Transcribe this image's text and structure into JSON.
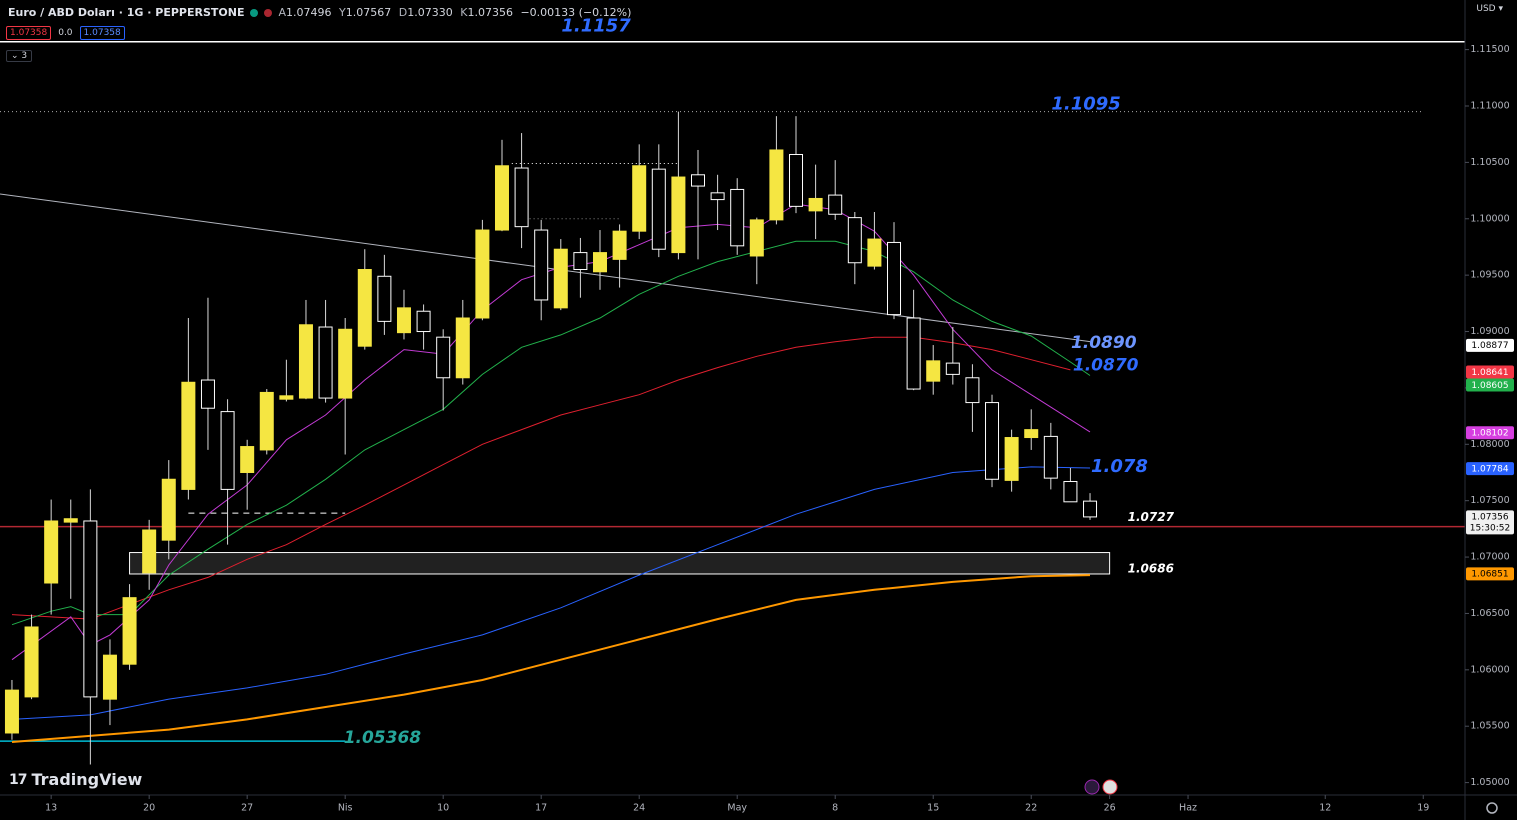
{
  "header": {
    "symbol": "Euro / ABD Doları · 1G · PEPPERSTONE",
    "ohlc": [
      {
        "key": "A",
        "value": "1.07496"
      },
      {
        "key": "Y",
        "value": "1.07567"
      },
      {
        "key": "D",
        "value": "1.07330"
      },
      {
        "key": "K",
        "value": "1.07356"
      }
    ],
    "change": "−0.00133 (−0.12%)",
    "sell": "1.07358",
    "spread": "0.0",
    "buy": "1.07358",
    "indicators": "3",
    "currency": "USD",
    "logo": "TradingView"
  },
  "chart_data": {
    "type": "candlestick",
    "xlim": [
      -0.61,
      74.13
    ],
    "ylim": [
      1.0489,
      1.1194
    ],
    "xticks": [
      {
        "value": 2,
        "label": "13"
      },
      {
        "value": 7,
        "label": "20"
      },
      {
        "value": 12,
        "label": "27"
      },
      {
        "value": 17,
        "label": "Nis"
      },
      {
        "value": 22,
        "label": "10"
      },
      {
        "value": 27,
        "label": "17"
      },
      {
        "value": 32,
        "label": "24"
      },
      {
        "value": 37,
        "label": "May"
      },
      {
        "value": 42,
        "label": "8"
      },
      {
        "value": 47,
        "label": "15"
      },
      {
        "value": 52,
        "label": "22"
      },
      {
        "value": 56,
        "label": "26"
      },
      {
        "value": 60,
        "label": "Haz"
      },
      {
        "value": 67,
        "label": "12"
      },
      {
        "value": 72,
        "label": "19"
      }
    ],
    "yticks": [
      {
        "value": 1.05,
        "label": "1.05000"
      },
      {
        "value": 1.055,
        "label": "1.05500"
      },
      {
        "value": 1.06,
        "label": "1.06000"
      },
      {
        "value": 1.065,
        "label": "1.06500"
      },
      {
        "value": 1.07,
        "label": "1.07000"
      },
      {
        "value": 1.075,
        "label": "1.07500"
      },
      {
        "value": 1.08,
        "label": "1.08000"
      },
      {
        "value": 1.085,
        "label": "1.08500"
      },
      {
        "value": 1.09,
        "label": "1.09000"
      },
      {
        "value": 1.095,
        "label": "1.09500"
      },
      {
        "value": 1.1,
        "label": "1.10000"
      },
      {
        "value": 1.105,
        "label": "1.10500"
      },
      {
        "value": 1.11,
        "label": "1.11000"
      },
      {
        "value": 1.115,
        "label": "1.11500"
      }
    ],
    "grid": false,
    "up_color": "#f5e642",
    "down_color": "#000000",
    "down_border": "#ffffff",
    "wick_color": "#d9d9d9",
    "open": [
      1.0544,
      1.0576,
      1.0677,
      1.0731,
      1.0732,
      1.0574,
      1.0605,
      1.0686,
      1.0715,
      1.076,
      1.0857,
      1.0829,
      1.0775,
      1.0795,
      1.084,
      1.0841,
      1.0904,
      1.0841,
      1.0887,
      1.0949,
      1.0899,
      1.0918,
      1.0895,
      1.0859,
      1.0912,
      1.099,
      1.1045,
      1.099,
      1.0921,
      1.097,
      1.0953,
      1.0964,
      1.0989,
      1.1044,
      1.097,
      1.1039,
      1.1023,
      1.1026,
      1.0967,
      1.0999,
      1.1057,
      1.1007,
      1.1021,
      1.1001,
      1.0958,
      1.0979,
      1.0912,
      1.0856,
      1.0872,
      1.0859,
      1.0837,
      1.0768,
      1.0806,
      1.0807,
      1.0767,
      1.07496
    ],
    "high": [
      1.0591,
      1.0649,
      1.0751,
      1.0751,
      1.076,
      1.0627,
      1.0676,
      1.0733,
      1.0786,
      1.0912,
      1.093,
      1.084,
      1.0804,
      1.0849,
      1.0875,
      1.0928,
      1.0928,
      1.0912,
      1.0973,
      1.0968,
      1.0937,
      1.0924,
      1.0902,
      1.0928,
      1.0999,
      1.107,
      1.1076,
      1.0999,
      1.0982,
      1.0983,
      1.099,
      1.0995,
      1.1066,
      1.1066,
      1.1095,
      1.1061,
      1.1039,
      1.1036,
      1.1001,
      1.1091,
      1.1091,
      1.1048,
      1.1052,
      1.1006,
      1.1006,
      1.0997,
      1.0937,
      1.0888,
      1.0904,
      1.0871,
      1.0844,
      1.0813,
      1.0831,
      1.0819,
      1.0779,
      1.07567
    ],
    "low": [
      1.0538,
      1.0574,
      1.0649,
      1.0663,
      1.0516,
      1.0551,
      1.06,
      1.0671,
      1.0698,
      1.0751,
      1.0795,
      1.0711,
      1.0742,
      1.0791,
      1.0838,
      1.084,
      1.0837,
      1.0791,
      1.0884,
      1.0897,
      1.0893,
      1.0884,
      1.083,
      1.0853,
      1.091,
      1.0989,
      1.0974,
      1.091,
      1.0919,
      1.093,
      1.0937,
      1.0939,
      1.0982,
      1.0966,
      1.0964,
      1.0964,
      1.099,
      1.0968,
      1.0942,
      1.0995,
      1.1005,
      1.0982,
      1.0999,
      1.0942,
      1.0955,
      1.0911,
      1.0848,
      1.0844,
      1.0853,
      1.0811,
      1.0762,
      1.0758,
      1.0795,
      1.076,
      1.0749,
      1.0733
    ],
    "close": [
      1.0582,
      1.0638,
      1.0732,
      1.0734,
      1.0576,
      1.0613,
      1.0664,
      1.0724,
      1.0769,
      1.0855,
      1.0832,
      1.076,
      1.0798,
      1.0846,
      1.0843,
      1.0906,
      1.0841,
      1.0902,
      1.0955,
      1.0909,
      1.0921,
      1.09,
      1.0859,
      1.0912,
      1.099,
      1.1047,
      1.0993,
      1.0928,
      1.0973,
      1.0955,
      1.097,
      1.0989,
      1.1047,
      1.0973,
      1.1037,
      1.1029,
      1.1017,
      1.0976,
      1.0999,
      1.1061,
      1.1011,
      1.1018,
      1.1004,
      1.0961,
      1.0982,
      1.0915,
      1.0849,
      1.0874,
      1.0862,
      1.0837,
      1.0769,
      1.0806,
      1.0813,
      1.077,
      1.0749,
      1.07356
    ],
    "lines": [
      {
        "color": "#ff9800",
        "width": 2,
        "x": [
          0,
          8,
          12,
          16,
          20,
          24,
          28,
          32,
          36,
          40,
          44,
          48,
          52,
          55
        ],
        "values": [
          1.0536,
          1.0547,
          1.0556,
          1.0567,
          1.0578,
          1.0591,
          1.0609,
          1.0627,
          1.0645,
          1.0662,
          1.0671,
          1.0678,
          1.0683,
          1.0684
        ]
      },
      {
        "color": "#2962ff",
        "width": 1,
        "x": [
          0,
          4,
          8,
          12,
          16,
          20,
          24,
          28,
          32,
          36,
          40,
          44,
          48,
          52,
          55
        ],
        "values": [
          1.0556,
          1.056,
          1.0574,
          1.0584,
          1.0596,
          1.0614,
          1.0631,
          1.0655,
          1.0684,
          1.0711,
          1.0738,
          1.076,
          1.0775,
          1.078,
          1.0779
        ]
      },
      {
        "color": "#e0202f",
        "width": 1,
        "x": [
          0,
          4,
          6,
          8,
          10,
          12,
          14,
          16,
          18,
          20,
          22,
          24,
          26,
          28,
          30,
          32,
          34,
          36,
          38,
          40,
          42,
          44,
          46,
          48,
          50,
          52,
          54
        ],
        "values": [
          1.0649,
          1.0645,
          1.0658,
          1.0671,
          1.0682,
          1.0698,
          1.0711,
          1.0729,
          1.0746,
          1.0764,
          1.0782,
          1.08,
          1.0813,
          1.0826,
          1.0835,
          1.0844,
          1.0857,
          1.0868,
          1.0878,
          1.0886,
          1.0891,
          1.0895,
          1.0895,
          1.089,
          1.0884,
          1.0875,
          1.0866
        ]
      },
      {
        "color": "#22b14c",
        "width": 1,
        "x": [
          0,
          2,
          3,
          4,
          6,
          8,
          10,
          12,
          14,
          16,
          18,
          20,
          22,
          24,
          26,
          28,
          30,
          32,
          34,
          36,
          38,
          40,
          42,
          44,
          46,
          48,
          50,
          52,
          54,
          55
        ],
        "values": [
          1.064,
          1.0652,
          1.0656,
          1.0649,
          1.0649,
          1.0684,
          1.0707,
          1.0729,
          1.0746,
          1.0769,
          1.0795,
          1.0813,
          1.0831,
          1.0862,
          1.0886,
          1.0897,
          1.0912,
          1.0933,
          1.0949,
          1.0962,
          1.0971,
          1.098,
          1.098,
          1.0971,
          1.0953,
          1.0928,
          1.0909,
          1.0896,
          1.0873,
          1.0861
        ]
      },
      {
        "color": "#c23bd4",
        "width": 1,
        "x": [
          0,
          3,
          4,
          5,
          7,
          8,
          10,
          12,
          14,
          16,
          18,
          20,
          22,
          24,
          26,
          28,
          30,
          32,
          34,
          36,
          38,
          40,
          42,
          44,
          46,
          48,
          50,
          52,
          55
        ],
        "values": [
          1.0609,
          1.0647,
          1.0622,
          1.0631,
          1.0662,
          1.0693,
          1.0738,
          1.0764,
          1.0804,
          1.0826,
          1.0857,
          1.0884,
          1.088,
          1.0919,
          1.0946,
          1.0957,
          1.0962,
          1.0977,
          1.0992,
          1.0995,
          1.0992,
          1.1013,
          1.1008,
          1.0989,
          1.095,
          1.0902,
          1.0866,
          1.0844,
          1.0811
        ]
      }
    ],
    "trendline": {
      "color": "#b2b5be",
      "x": [
        -0.61,
        55
      ],
      "values": [
        1.1022,
        1.0891
      ]
    },
    "zone": {
      "x": [
        6,
        56
      ],
      "values": [
        1.0704,
        1.0685
      ]
    },
    "hlines": [
      {
        "value": 1.1157,
        "x": [
          -0.61,
          74.13
        ],
        "color": "#ffffff",
        "style": "solid"
      },
      {
        "value": 1.1095,
        "x": [
          -0.61,
          72
        ],
        "color": "#aaaaaa",
        "style": "dotted"
      },
      {
        "value": 1.0727,
        "x": [
          -0.61,
          74.13
        ],
        "color": "#b22833",
        "style": "solid"
      },
      {
        "value": 1.05368,
        "x": [
          -0.61,
          17
        ],
        "color": "#00bcd4",
        "style": "solid"
      },
      {
        "value": 1.0739,
        "x": [
          9,
          17
        ],
        "color": "#ffffff",
        "style": "dashed"
      },
      {
        "value": 1.1049,
        "x": [
          25.5,
          34
        ],
        "color": "#ffffff",
        "style": "dotted"
      },
      {
        "value": 1.1,
        "x": [
          26,
          31
        ],
        "color": "#888888",
        "style": "dotted"
      }
    ],
    "annotations": [
      {
        "label": "1.1157",
        "value": 1.1157,
        "x": 29.8,
        "color": "#2f6bff",
        "size": 18
      },
      {
        "label": "1.1095",
        "value": 1.1095,
        "x": 54.8,
        "color": "#2f6bff",
        "size": 18
      },
      {
        "label": "1.0890",
        "value": 1.089,
        "x": 55.7,
        "color": "#6d95ff",
        "size": 17
      },
      {
        "label": "1.0870",
        "value": 1.087,
        "x": 55.8,
        "color": "#2f6bff",
        "size": 17
      },
      {
        "label": "1.078",
        "value": 1.078,
        "x": 56.5,
        "color": "#2f6bff",
        "size": 18
      },
      {
        "label": "1.0727",
        "value": 1.0727,
        "x": 58.1,
        "color": "#ffffff",
        "size": 12
      },
      {
        "label": "1.0686",
        "value": 1.0686,
        "x": 58.1,
        "color": "#ffffff",
        "size": 12
      },
      {
        "label": "1.05368",
        "value": 1.05368,
        "x": 18.9,
        "color": "#26a69a",
        "size": 17
      }
    ],
    "price_tags": [
      {
        "value": 1.08877,
        "bg": "#ffffff",
        "fg": "#000000"
      },
      {
        "value": 1.08641,
        "bg": "#f23645",
        "fg": "#ffffff"
      },
      {
        "value": 1.08605,
        "bg": "#22b14c",
        "fg": "#ffffff"
      },
      {
        "value": 1.08102,
        "bg": "#d63fe0",
        "fg": "#ffffff"
      },
      {
        "value": 1.07784,
        "bg": "#2962ff",
        "fg": "#ffffff"
      },
      {
        "value": 1.07356,
        "bg": "#f0f0f0",
        "fg": "#000000",
        "countdown": "15:30:52"
      },
      {
        "value": 1.06851,
        "bg": "#ff9800",
        "fg": "#000000"
      }
    ]
  }
}
